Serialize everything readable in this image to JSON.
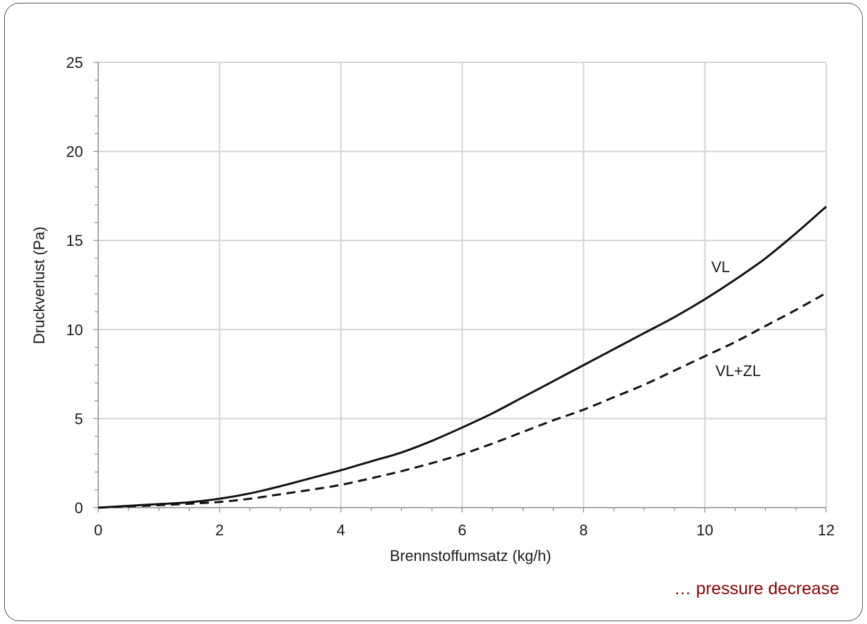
{
  "caption": "… pressure decrease",
  "chart_data": {
    "type": "line",
    "xlabel": "Brennstoffumsatz (kg/h)",
    "ylabel": "Druckverlust (Pa)",
    "xlim": [
      0,
      12
    ],
    "ylim": [
      0,
      25
    ],
    "xticks": [
      0,
      2,
      4,
      6,
      8,
      10,
      12
    ],
    "yticks": [
      0,
      5,
      10,
      15,
      20,
      25
    ],
    "grid": true,
    "series": [
      {
        "name": "VL",
        "line_style": "solid",
        "color": "#111111",
        "x": [
          0,
          0.5,
          1,
          1.5,
          2,
          2.5,
          3,
          3.5,
          4,
          4.5,
          5,
          5.5,
          6,
          6.5,
          7,
          7.5,
          8,
          8.5,
          9,
          9.5,
          10,
          10.5,
          11,
          11.5,
          12
        ],
        "y": [
          0,
          0.1,
          0.2,
          0.3,
          0.5,
          0.8,
          1.2,
          1.65,
          2.1,
          2.6,
          3.1,
          3.75,
          4.5,
          5.3,
          6.2,
          7.1,
          8.0,
          8.9,
          9.8,
          10.7,
          11.7,
          12.8,
          14.0,
          15.4,
          16.9
        ]
      },
      {
        "name": "VL+ZL",
        "line_style": "dashed",
        "color": "#111111",
        "x": [
          0,
          0.5,
          1,
          1.5,
          2,
          2.5,
          3,
          3.5,
          4,
          4.5,
          5,
          5.5,
          6,
          6.5,
          7,
          7.5,
          8,
          8.5,
          9,
          9.5,
          10,
          10.5,
          11,
          11.5,
          12
        ],
        "y": [
          0,
          0.07,
          0.14,
          0.22,
          0.32,
          0.5,
          0.75,
          1.0,
          1.28,
          1.65,
          2.05,
          2.5,
          3.0,
          3.6,
          4.25,
          4.9,
          5.5,
          6.2,
          6.9,
          7.7,
          8.5,
          9.3,
          10.2,
          11.1,
          12.05
        ]
      }
    ]
  }
}
